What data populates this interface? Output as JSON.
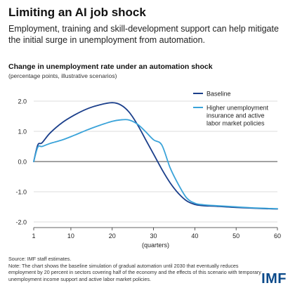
{
  "header": {
    "title": "Limiting an AI job shock",
    "subtitle": "Employment, training and skill-development support can help mitigate the initial surge in unemployment from automation."
  },
  "footer": {
    "source": "Source: IMF staff estimates.",
    "note": "Note: The chart shows the baseline simulation of gradual automation until 2030 that eventually reduces employment by 20 percent in sectors covering half of the economy and the effects of this scenario with temporary unemployment income support and active labor market policies.",
    "logo": "IMF"
  },
  "chart_data": {
    "type": "line",
    "title": "Change in unemployment rate under an automation shock",
    "subtitle": "(percentage points, illustrative scenarios)",
    "xlabel": "(quarters)",
    "ylabel": "",
    "xlim": [
      1,
      60
    ],
    "ylim": [
      -2.0,
      2.0
    ],
    "xticks": [
      1,
      10,
      20,
      30,
      40,
      50,
      60
    ],
    "yticks": [
      2.0,
      1.0,
      0.0,
      -1.0,
      -2.0
    ],
    "ytick_labels": [
      "2.0",
      "1.0",
      "0.0",
      "-1.0",
      "-2.0"
    ],
    "grid": "horizontal",
    "legend": "top-right",
    "colors": {
      "Baseline": "#1b3f8b",
      "Policies": "#3aa3d9",
      "grid": "#d0d0d0",
      "zero": "#444444"
    },
    "series": [
      {
        "name": "Baseline",
        "x": [
          1,
          2,
          3,
          5,
          8,
          11,
          14,
          17,
          20,
          22,
          24,
          26,
          28,
          30,
          32,
          34,
          36,
          38,
          40,
          42,
          45,
          50,
          55,
          60
        ],
        "values": [
          0.0,
          0.55,
          0.62,
          0.95,
          1.3,
          1.55,
          1.75,
          1.88,
          1.95,
          1.88,
          1.65,
          1.25,
          0.75,
          0.25,
          -0.25,
          -0.7,
          -1.05,
          -1.3,
          -1.42,
          -1.46,
          -1.48,
          -1.52,
          -1.55,
          -1.57
        ]
      },
      {
        "name": "Higher unemployment insurance and active labor market policies",
        "x": [
          1,
          2,
          3,
          5,
          8,
          11,
          14,
          17,
          20,
          22,
          24,
          26,
          28,
          30,
          32,
          34,
          36,
          38,
          40,
          42,
          45,
          50,
          55,
          60
        ],
        "values": [
          0.0,
          0.48,
          0.5,
          0.6,
          0.72,
          0.88,
          1.05,
          1.2,
          1.33,
          1.38,
          1.38,
          1.25,
          1.0,
          0.72,
          0.55,
          -0.2,
          -0.75,
          -1.2,
          -1.38,
          -1.43,
          -1.46,
          -1.5,
          -1.54,
          -1.56
        ]
      }
    ]
  }
}
